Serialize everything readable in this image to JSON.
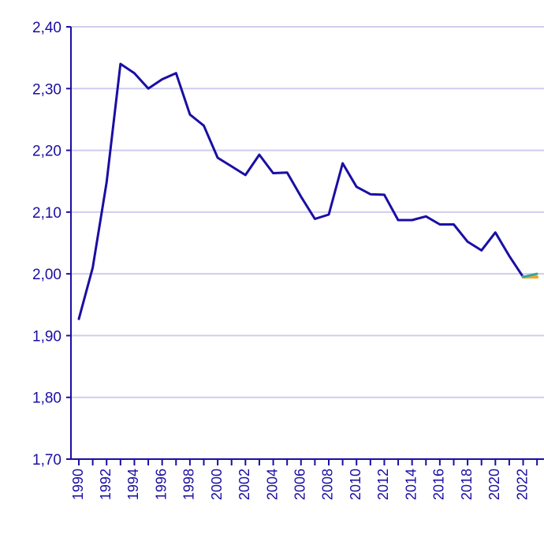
{
  "chart_data": {
    "type": "line",
    "title": "",
    "xlabel": "",
    "ylabel": "",
    "xlim": [
      1990,
      2023
    ],
    "ylim": [
      1.7,
      2.4
    ],
    "yticks": [
      "1,70",
      "1,80",
      "1,90",
      "2,00",
      "2,10",
      "2,20",
      "2,30",
      "2,40"
    ],
    "ytick_values": [
      1.7,
      1.8,
      1.9,
      2.0,
      2.1,
      2.2,
      2.3,
      2.4
    ],
    "xticks": [
      "1990",
      "1992",
      "1994",
      "1996",
      "1998",
      "2000",
      "2002",
      "2004",
      "2006",
      "2008",
      "2010",
      "2012",
      "2014",
      "2016",
      "2018",
      "2020",
      "2022"
    ],
    "xtick_values": [
      1990,
      1992,
      1994,
      1996,
      1998,
      2000,
      2002,
      2004,
      2006,
      2008,
      2010,
      2012,
      2014,
      2016,
      2018,
      2020,
      2022
    ],
    "grid": true,
    "colors": {
      "axis": "#1a0ea3",
      "grid": "#cfcdee",
      "line": "#1a0ea3",
      "proj_a": "#f5a623",
      "proj_b": "#35a8a0"
    },
    "series": [
      {
        "name": "",
        "x": [
          1990,
          1991,
          1992,
          1993,
          1994,
          1995,
          1996,
          1997,
          1998,
          1999,
          2000,
          2001,
          2002,
          2003,
          2004,
          2005,
          2006,
          2007,
          2008,
          2009,
          2010,
          2011,
          2012,
          2013,
          2014,
          2015,
          2016,
          2017,
          2018,
          2019,
          2020,
          2021,
          2022
        ],
        "y": [
          1.927,
          2.01,
          2.148,
          2.34,
          2.325,
          2.3,
          2.315,
          2.325,
          2.258,
          2.24,
          2.188,
          2.174,
          2.16,
          2.193,
          2.163,
          2.164,
          2.125,
          2.089,
          2.096,
          2.179,
          2.141,
          2.129,
          2.128,
          2.087,
          2.087,
          2.093,
          2.08,
          2.08,
          2.052,
          2.038,
          2.067,
          2.029,
          1.995
        ]
      },
      {
        "name": "",
        "x": [
          2022,
          2023
        ],
        "y": [
          1.995,
          1.995
        ]
      },
      {
        "name": "",
        "x": [
          2022,
          2023
        ],
        "y": [
          1.995,
          2.0
        ]
      }
    ]
  }
}
